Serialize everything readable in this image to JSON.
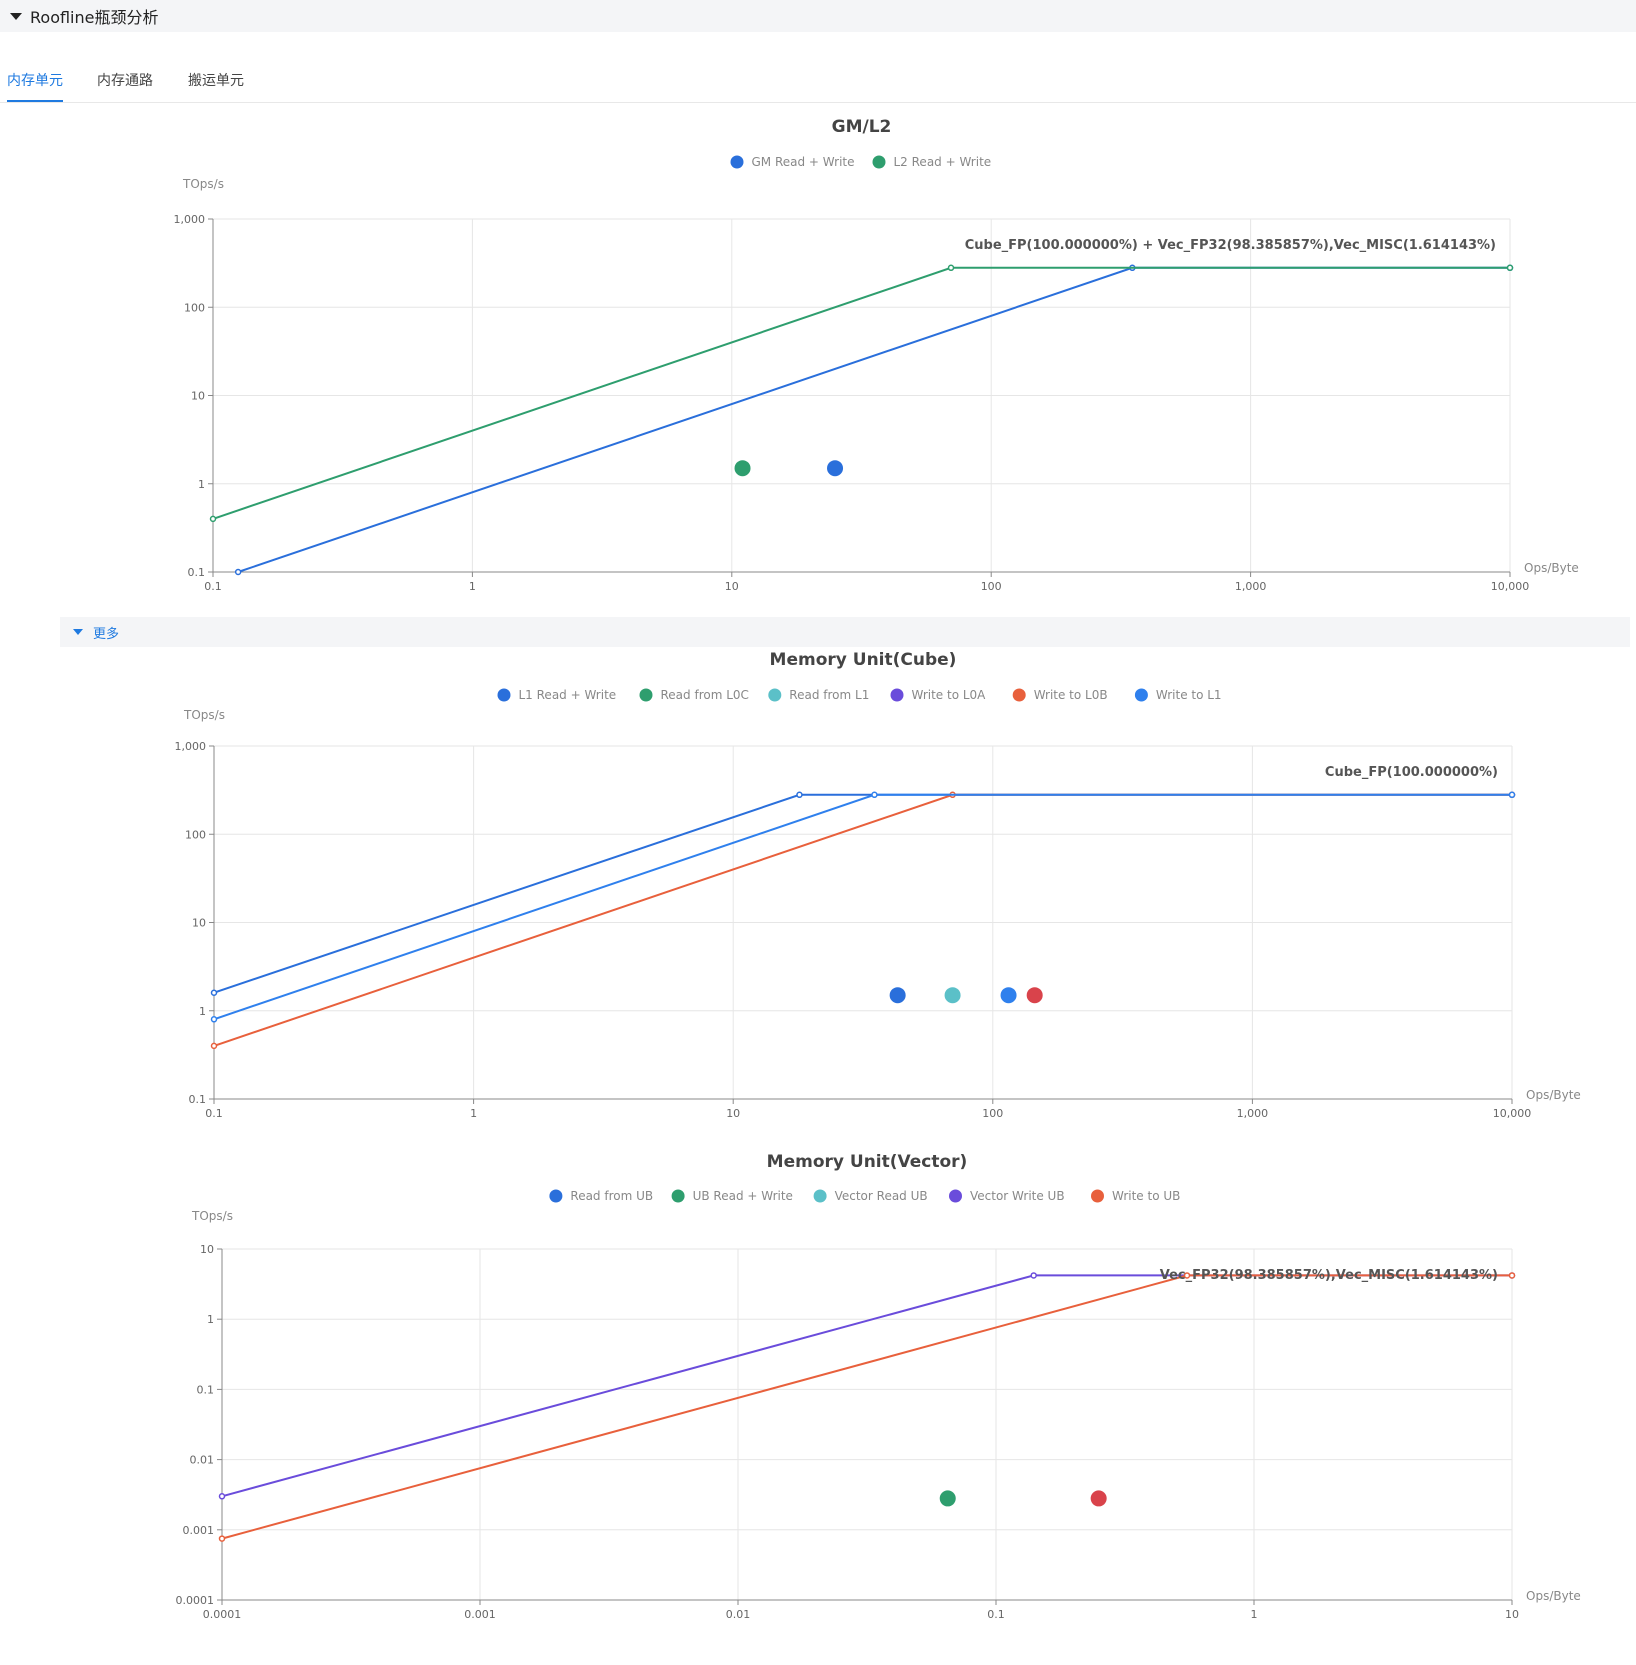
{
  "section": {
    "title": "Roofline瓶颈分析"
  },
  "tabs": [
    {
      "label": "内存单元",
      "active": true
    },
    {
      "label": "内存通路",
      "active": false
    },
    {
      "label": "搬运单元",
      "active": false
    }
  ],
  "more": {
    "label": "更多"
  },
  "colors": {
    "blue": "#2a6fdb",
    "green": "#2e9e6e",
    "cyan": "#5bc0c8",
    "purple": "#6a4cdb",
    "orange": "#e8603c",
    "red": "#d9434b",
    "lightblue": "#2f80ed"
  },
  "chart_data": [
    {
      "type": "scatter",
      "title": "GM/L2",
      "xlabel": "Ops/Byte",
      "ylabel": "TOps/s",
      "xscale": "log",
      "yscale": "log",
      "xlim": [
        0.1,
        10000
      ],
      "ylim": [
        0.1,
        1000
      ],
      "grid": true,
      "legend_position": "top-center",
      "xticks": [
        "0.1",
        "1",
        "10",
        "100",
        "1,000",
        "10,000"
      ],
      "yticks": [
        "0.1",
        "1",
        "10",
        "100",
        "1,000"
      ],
      "roof_label": "Cube_FP(100.000000%) + Vec_FP32(98.385857%),Vec_MISC(1.614143%)",
      "series": [
        {
          "name": "GM Read + Write",
          "color": "#2a6fdb",
          "line": [
            [
              0.125,
              0.1
            ],
            [
              350,
              280
            ],
            [
              10000,
              280
            ]
          ],
          "point": [
            25,
            1.5
          ]
        },
        {
          "name": "L2 Read + Write",
          "color": "#2e9e6e",
          "line": [
            [
              0.1,
              0.4
            ],
            [
              70,
              280
            ],
            [
              10000,
              280
            ]
          ],
          "point": [
            11,
            1.5
          ]
        }
      ]
    },
    {
      "type": "scatter",
      "title": "Memory Unit(Cube)",
      "xlabel": "Ops/Byte",
      "ylabel": "TOps/s",
      "xscale": "log",
      "yscale": "log",
      "xlim": [
        0.1,
        10000
      ],
      "ylim": [
        0.1,
        1000
      ],
      "grid": true,
      "legend_position": "top-center",
      "xticks": [
        "0.1",
        "1",
        "10",
        "100",
        "1,000",
        "10,000"
      ],
      "yticks": [
        "0.1",
        "1",
        "10",
        "100",
        "1,000"
      ],
      "roof_label": "Cube_FP(100.000000%)",
      "series": [
        {
          "name": "L1 Read + Write",
          "color": "#2a6fdb",
          "line": [
            [
              0.1,
              1.6
            ],
            [
              18,
              280
            ],
            [
              10000,
              280
            ]
          ],
          "point": [
            43,
            1.5
          ]
        },
        {
          "name": "Read from L0C",
          "color": "#2e9e6e",
          "line": [],
          "point": null
        },
        {
          "name": "Read from L1",
          "color": "#5bc0c8",
          "line": [],
          "point": [
            70,
            1.5
          ]
        },
        {
          "name": "Write to L0A",
          "color": "#6a4cdb",
          "line": [],
          "point": null
        },
        {
          "name": "Write to L0B",
          "color": "#e8603c",
          "line": [
            [
              0.1,
              0.4
            ],
            [
              70,
              280
            ],
            [
              10000,
              280
            ]
          ],
          "point": [
            145,
            1.5
          ]
        },
        {
          "name": "Write to L1",
          "color": "#2f80ed",
          "line": [
            [
              0.1,
              0.8
            ],
            [
              35,
              280
            ],
            [
              10000,
              280
            ]
          ],
          "point": [
            115,
            1.5
          ]
        }
      ]
    },
    {
      "type": "scatter",
      "title": "Memory Unit(Vector)",
      "xlabel": "Ops/Byte",
      "ylabel": "TOps/s",
      "xscale": "log",
      "yscale": "log",
      "xlim": [
        0.0001,
        10
      ],
      "ylim": [
        0.0001,
        10
      ],
      "grid": true,
      "legend_position": "top-center",
      "xticks": [
        "0.0001",
        "0.001",
        "0.01",
        "0.1",
        "1",
        "10"
      ],
      "yticks": [
        "0.0001",
        "0.001",
        "0.01",
        "0.1",
        "1",
        "10"
      ],
      "roof_label": "Vec_FP32(98.385857%),Vec_MISC(1.614143%)",
      "series": [
        {
          "name": "Read from UB",
          "color": "#2a6fdb",
          "line": [],
          "point": null
        },
        {
          "name": "UB Read + Write",
          "color": "#2e9e6e",
          "line": [],
          "point": [
            0.065,
            0.0028
          ]
        },
        {
          "name": "Vector Read UB",
          "color": "#5bc0c8",
          "line": [],
          "point": null
        },
        {
          "name": "Vector Write UB",
          "color": "#6a4cdb",
          "line": [
            [
              0.0001,
              0.003
            ],
            [
              0.14,
              4.2
            ],
            [
              10,
              4.2
            ]
          ],
          "point": null
        },
        {
          "name": "Write to UB",
          "color": "#e8603c",
          "line": [
            [
              0.0001,
              0.00075
            ],
            [
              0.55,
              4.2
            ],
            [
              10,
              4.2
            ]
          ],
          "point": [
            0.25,
            0.0028
          ]
        }
      ]
    }
  ]
}
